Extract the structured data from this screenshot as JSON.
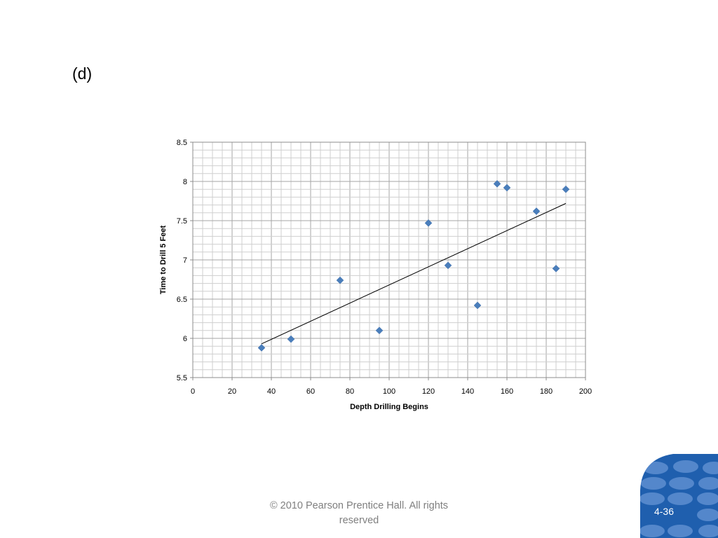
{
  "slide": {
    "label": "(d)",
    "footer": "© 2010 Pearson Prentice Hall. All rights reserved",
    "page_number": "4-36",
    "accent_color": "#1f5fae"
  },
  "chart_data": {
    "type": "scatter",
    "title": "",
    "xlabel": "Depth Drilling Begins",
    "ylabel": "Time to Drill 5 Feet",
    "xlim": [
      0,
      200
    ],
    "ylim": [
      5.5,
      8.5
    ],
    "xticks": [
      0,
      20,
      40,
      60,
      80,
      100,
      120,
      140,
      160,
      180,
      200
    ],
    "yticks": [
      5.5,
      6,
      6.5,
      7,
      7.5,
      8,
      8.5
    ],
    "grid": true,
    "marker": "diamond",
    "marker_color": "#4a7ebb",
    "points": [
      {
        "x": 35,
        "y": 5.88
      },
      {
        "x": 50,
        "y": 5.99
      },
      {
        "x": 75,
        "y": 6.74
      },
      {
        "x": 95,
        "y": 6.1
      },
      {
        "x": 120,
        "y": 7.47
      },
      {
        "x": 130,
        "y": 6.93
      },
      {
        "x": 145,
        "y": 6.42
      },
      {
        "x": 155,
        "y": 7.97
      },
      {
        "x": 160,
        "y": 7.92
      },
      {
        "x": 175,
        "y": 7.62
      },
      {
        "x": 185,
        "y": 6.89
      },
      {
        "x": 190,
        "y": 7.9
      }
    ],
    "trendline": {
      "type": "linear",
      "x": [
        35,
        190
      ],
      "y": [
        5.93,
        7.72
      ]
    }
  }
}
